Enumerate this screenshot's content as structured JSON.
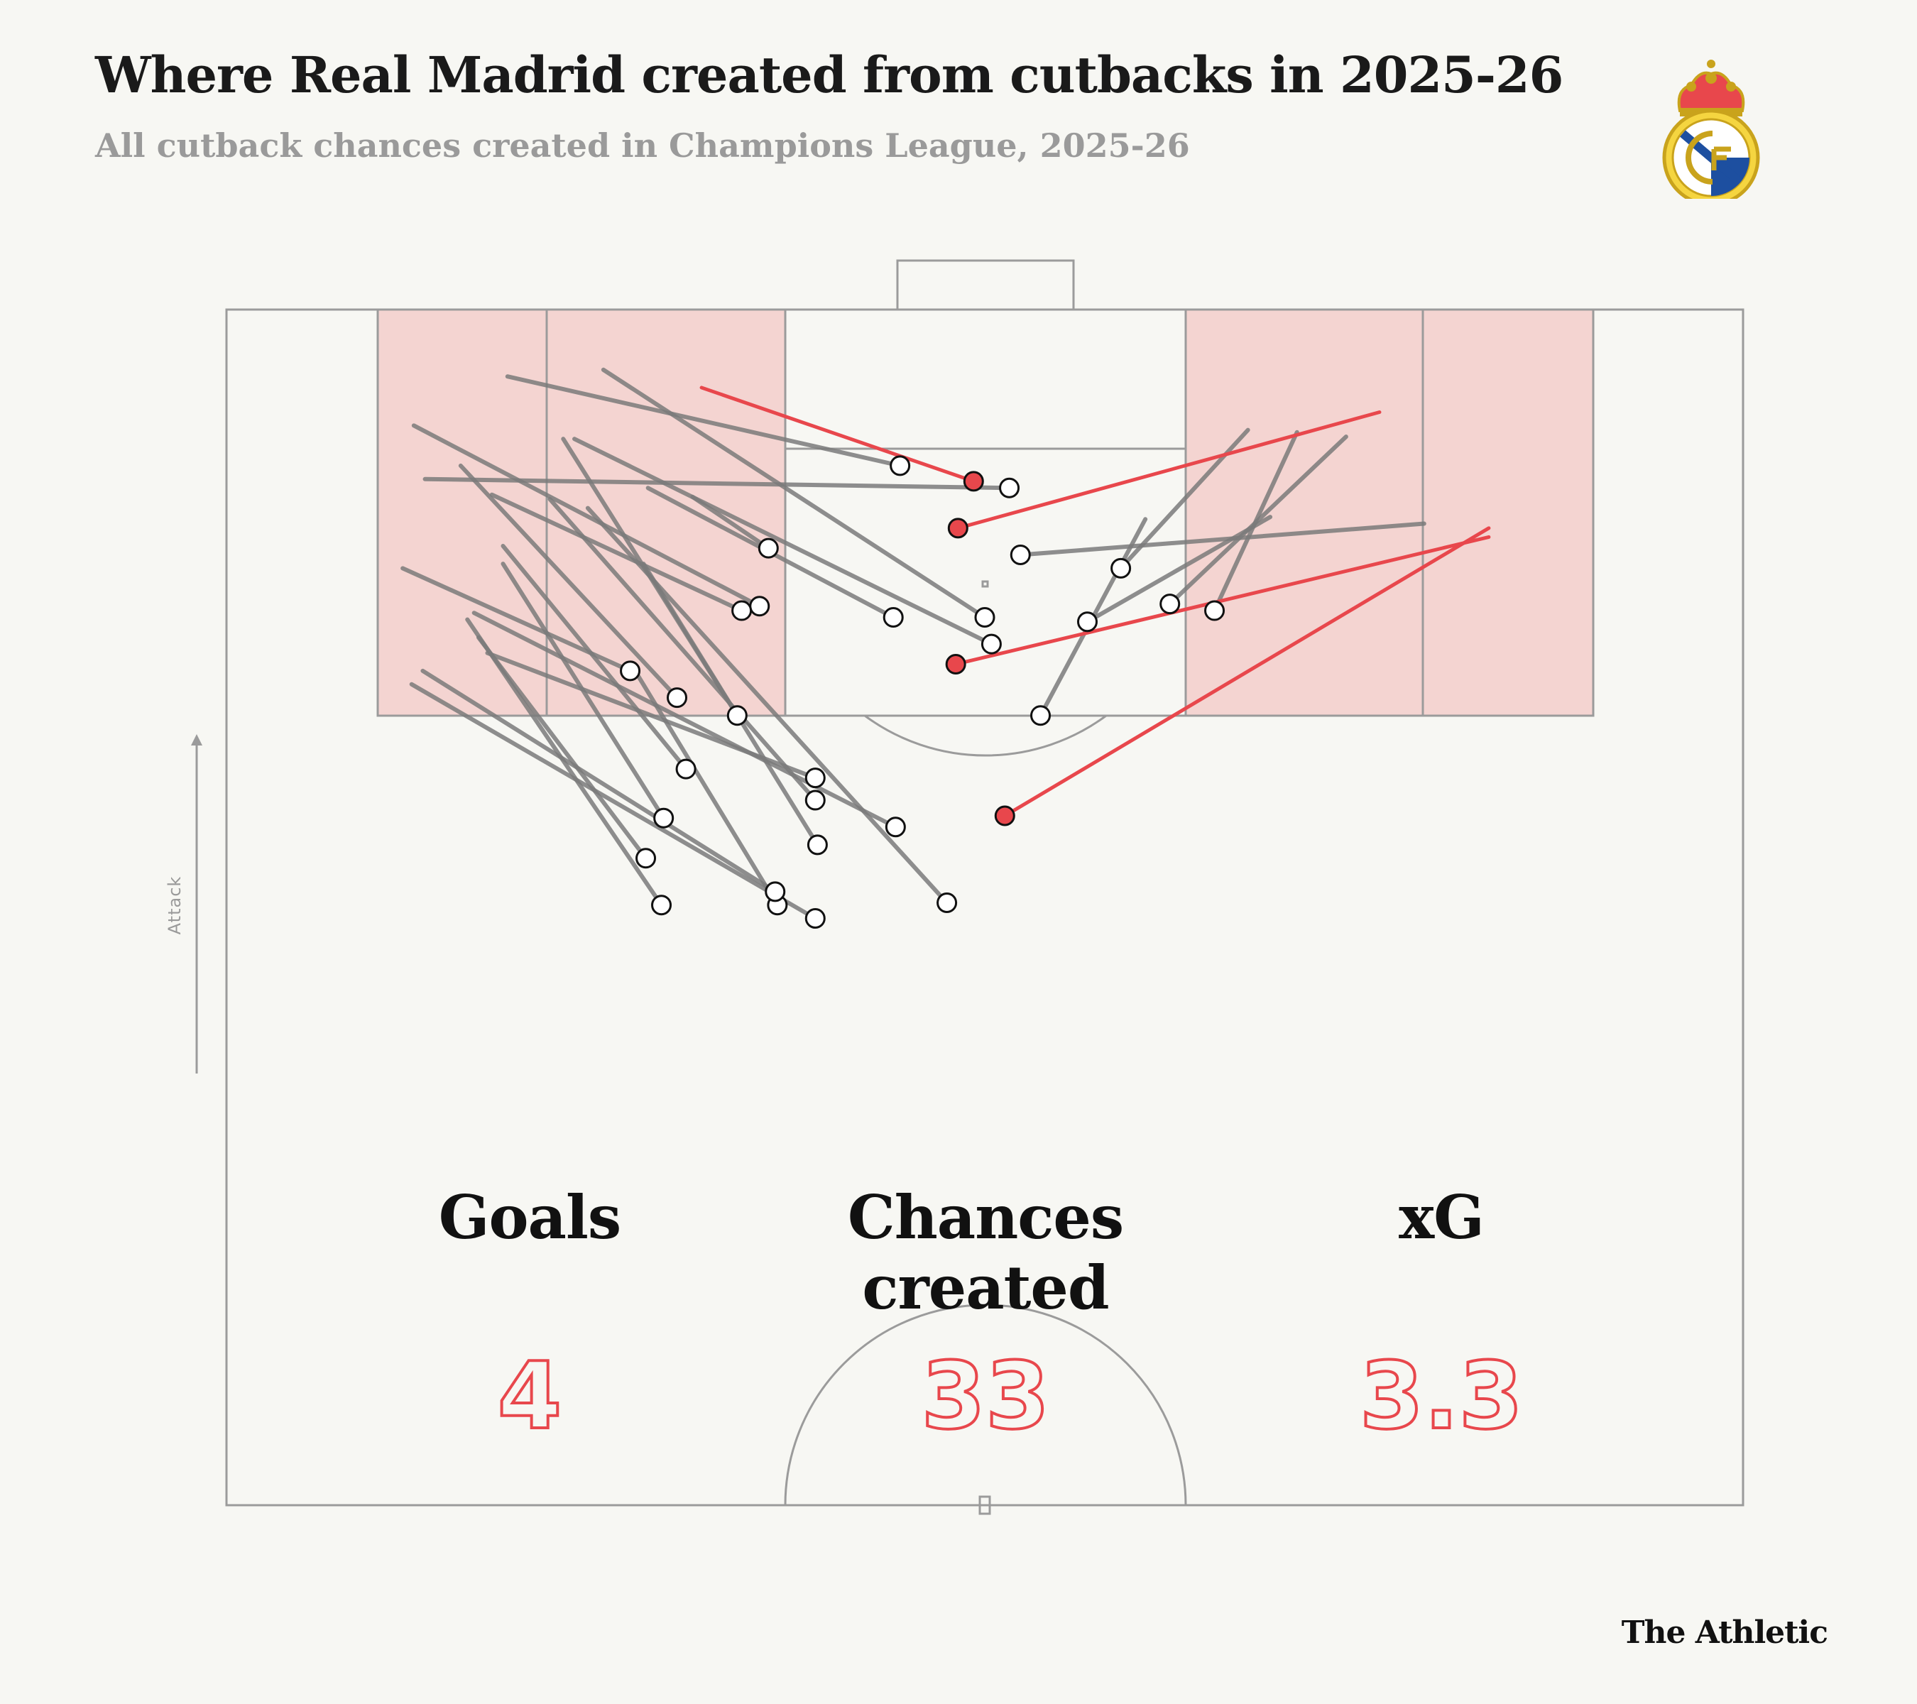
{
  "header": {
    "title": "Where Real Madrid created from cutbacks in 2025-26",
    "subtitle": "All cutback chances created in Champions League, 2025-26"
  },
  "logo": {
    "icon": "real-madrid-crest-icon"
  },
  "attack_label": "Attack",
  "stats": [
    {
      "label": "Goals",
      "value": "4"
    },
    {
      "label": "Chances created",
      "value": "33"
    },
    {
      "label": "xG",
      "value": "3.3"
    }
  ],
  "brand": "The Athletic",
  "colors": {
    "background": "#f7f7f3",
    "zone_fill": "#f4d4d1",
    "line_gray": "#7a7a7a",
    "goal_red": "#e8474c",
    "pitch_line": "#9b9b9b"
  },
  "chart_data": {
    "type": "scatter",
    "note_units": "pitch coordinates in metres; x across pitch (0 = left touchline, 68 = right touchline), y = distance from goal line",
    "title": "Where Real Madrid created from cutbacks in 2025-26",
    "subtitle": "All cutback chances created in Champions League, 2025-26",
    "pitch": {
      "width": 68,
      "length_shown": 53.6
    },
    "chances": [
      {
        "from": [
          12.6,
          3.0
        ],
        "to": [
          30.2,
          7.0
        ],
        "goal": false
      },
      {
        "from": [
          8.9,
          7.6
        ],
        "to": [
          35.1,
          8.0
        ],
        "goal": false
      },
      {
        "from": [
          16.9,
          2.7
        ],
        "to": [
          34.0,
          13.8
        ],
        "goal": false
      },
      {
        "from": [
          14.5,
          8.5
        ],
        "to": [
          26.4,
          22.0
        ],
        "goal": false
      },
      {
        "from": [
          8.4,
          5.2
        ],
        "to": [
          23.9,
          13.3
        ],
        "goal": false
      },
      {
        "from": [
          11.9,
          8.3
        ],
        "to": [
          23.1,
          13.5
        ],
        "goal": false
      },
      {
        "from": [
          18.9,
          8.0
        ],
        "to": [
          29.9,
          13.8
        ],
        "goal": false
      },
      {
        "from": [
          20.9,
          8.4
        ],
        "to": [
          24.3,
          10.7
        ],
        "goal": false
      },
      {
        "from": [
          15.6,
          5.8
        ],
        "to": [
          34.3,
          15.0
        ],
        "goal": false
      },
      {
        "from": [
          11.7,
          15.4
        ],
        "to": [
          26.4,
          21.0
        ],
        "goal": false
      },
      {
        "from": [
          11.1,
          13.6
        ],
        "to": [
          30.0,
          23.2
        ],
        "goal": false
      },
      {
        "from": [
          7.9,
          11.6
        ],
        "to": [
          18.1,
          16.2
        ],
        "goal": false
      },
      {
        "from": [
          15.1,
          5.8
        ],
        "to": [
          22.9,
          18.2
        ],
        "goal": false
      },
      {
        "from": [
          12.4,
          10.6
        ],
        "to": [
          20.6,
          20.6
        ],
        "goal": false
      },
      {
        "from": [
          12.4,
          11.4
        ],
        "to": [
          19.6,
          22.8
        ],
        "goal": false
      },
      {
        "from": [
          10.5,
          7.0
        ],
        "to": [
          20.2,
          17.4
        ],
        "goal": false
      },
      {
        "from": [
          18.7,
          11.4
        ],
        "to": [
          26.5,
          24.0
        ],
        "goal": false
      },
      {
        "from": [
          16.2,
          8.9
        ],
        "to": [
          32.3,
          26.6
        ],
        "goal": false
      },
      {
        "from": [
          11.3,
          14.7
        ],
        "to": [
          18.8,
          24.6
        ],
        "goal": false
      },
      {
        "from": [
          10.8,
          13.9
        ],
        "to": [
          19.5,
          26.7
        ],
        "goal": false
      },
      {
        "from": [
          18.2,
          16.0
        ],
        "to": [
          24.7,
          26.7
        ],
        "goal": false
      },
      {
        "from": [
          8.8,
          16.2
        ],
        "to": [
          24.6,
          26.1
        ],
        "goal": false
      },
      {
        "from": [
          8.3,
          16.8
        ],
        "to": [
          26.4,
          27.3
        ],
        "goal": false
      },
      {
        "from": [
          53.7,
          9.6
        ],
        "to": [
          35.6,
          11.0
        ],
        "goal": false
      },
      {
        "from": [
          45.8,
          5.4
        ],
        "to": [
          40.1,
          11.6
        ],
        "goal": false
      },
      {
        "from": [
          46.8,
          9.3
        ],
        "to": [
          38.6,
          14.0
        ],
        "goal": false
      },
      {
        "from": [
          41.2,
          9.4
        ],
        "to": [
          36.5,
          18.2
        ],
        "goal": false
      },
      {
        "from": [
          48.0,
          5.5
        ],
        "to": [
          44.3,
          13.5
        ],
        "goal": false
      },
      {
        "from": [
          50.2,
          5.7
        ],
        "to": [
          42.3,
          13.2
        ],
        "goal": false
      },
      {
        "from": [
          56.6,
          9.8
        ],
        "to": [
          34.9,
          22.7
        ],
        "goal": true
      },
      {
        "from": [
          21.3,
          3.5
        ],
        "to": [
          33.5,
          7.7
        ],
        "goal": true
      },
      {
        "from": [
          51.7,
          4.6
        ],
        "to": [
          32.8,
          9.8
        ],
        "goal": true
      },
      {
        "from": [
          56.6,
          10.2
        ],
        "to": [
          32.7,
          15.9
        ],
        "goal": true
      }
    ]
  }
}
